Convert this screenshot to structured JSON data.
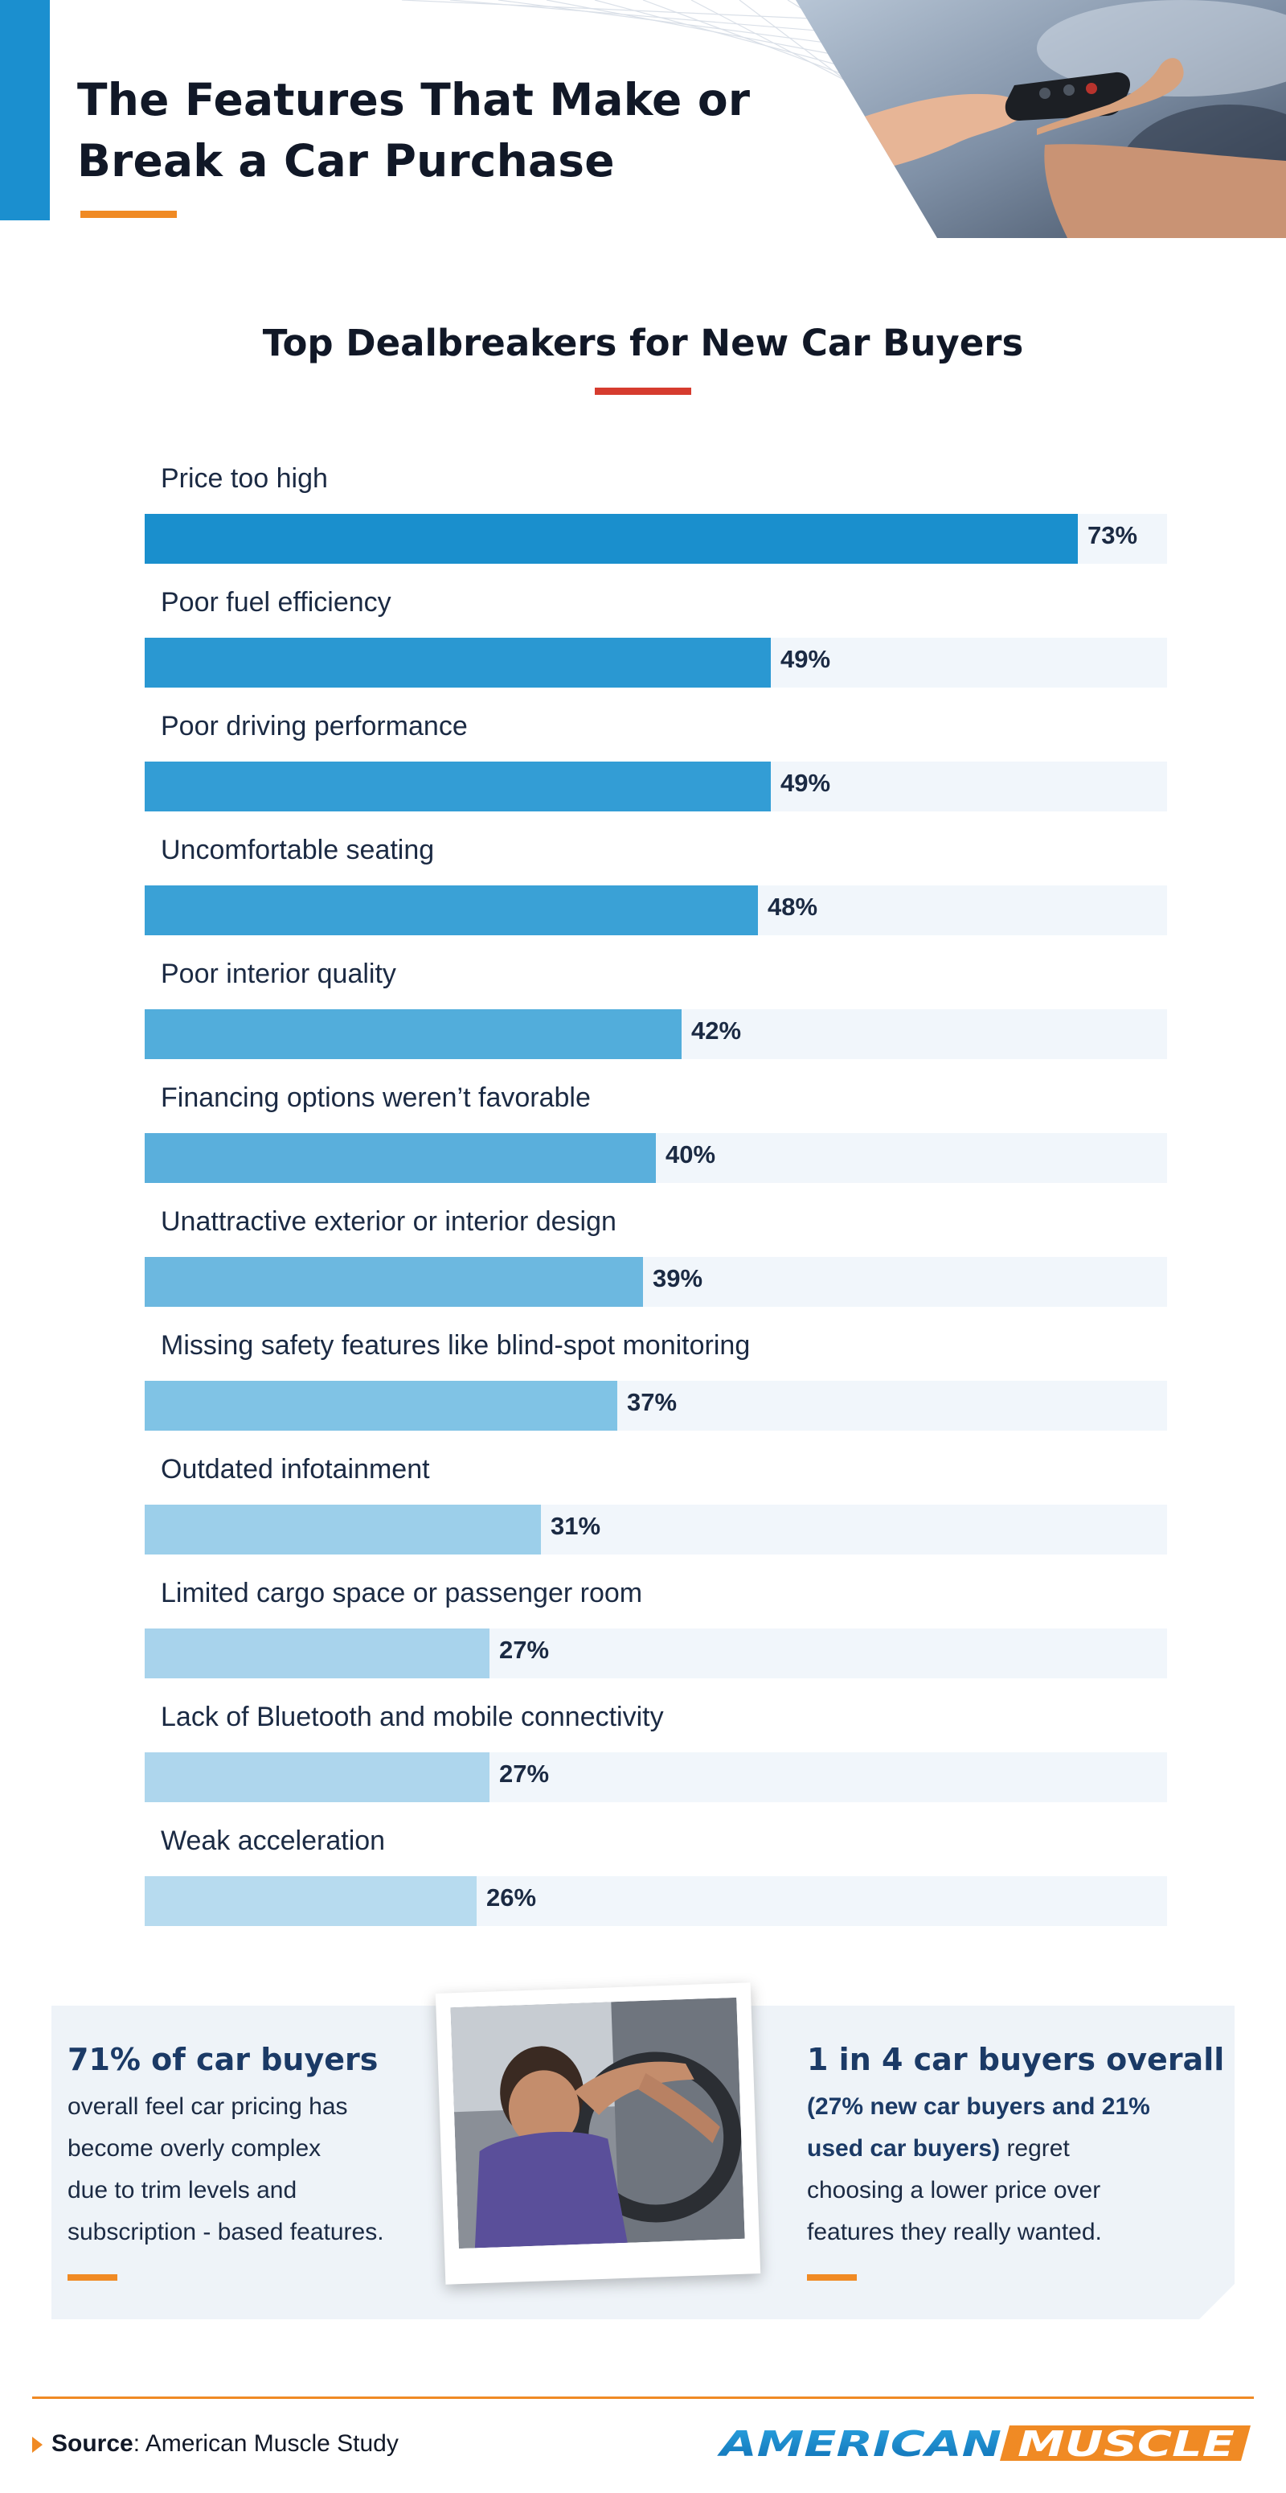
{
  "header": {
    "title_line1": "The Features That Make or",
    "title_line2": "Break a Car Purchase",
    "accent_color": "#1b8fcf",
    "underline_color": "#f08a24"
  },
  "chart_data": {
    "type": "bar",
    "orientation": "horizontal",
    "title": "Top Dealbreakers for New Car Buyers",
    "categories": [
      "Price too high",
      "Poor fuel efficiency",
      "Poor driving performance",
      "Uncomfortable seating",
      "Poor interior quality",
      "Financing options weren’t favorable",
      "Unattractive exterior or interior design",
      "Missing safety features like blind-spot monitoring",
      "Outdated infotainment",
      "Limited cargo space or passenger room",
      "Lack of Bluetooth and mobile connectivity",
      "Weak acceleration"
    ],
    "values": [
      73,
      49,
      49,
      48,
      42,
      40,
      39,
      37,
      31,
      27,
      27,
      26
    ],
    "value_labels": [
      "73%",
      "49%",
      "49%",
      "48%",
      "42%",
      "40%",
      "39%",
      "37%",
      "31%",
      "27%",
      "27%",
      "26%"
    ],
    "xlim": [
      0,
      80
    ],
    "unit": "%",
    "bar_colors": [
      "#1a8fcd",
      "#2a98d2",
      "#339dd5",
      "#3aa1d6",
      "#52addb",
      "#5aafdc",
      "#6cb8e0",
      "#80c3e5",
      "#9ccfea",
      "#a8d3ec",
      "#aed6ed",
      "#b7dbef"
    ],
    "track_color": "#f1f6fb",
    "grid": false,
    "legend": "none"
  },
  "stats": {
    "left": {
      "headline": "71% of car buyers",
      "body_lines": [
        "overall feel car pricing has",
        "become overly complex",
        "due to trim levels and",
        "subscription - based features."
      ]
    },
    "right": {
      "headline": "1 in 4 car buyers overall",
      "body_bold_1": "(27% new car buyers and 21%",
      "body_bold_2": "used car buyers)",
      "body_rest_2": " regret",
      "body_line_3": "choosing a lower price over",
      "body_line_4": "features they really wanted."
    }
  },
  "footer": {
    "source_label": "Source",
    "source_text": ": American Muscle Study",
    "logo_part1": "AMERICAN",
    "logo_part2": "MUSCLE"
  }
}
